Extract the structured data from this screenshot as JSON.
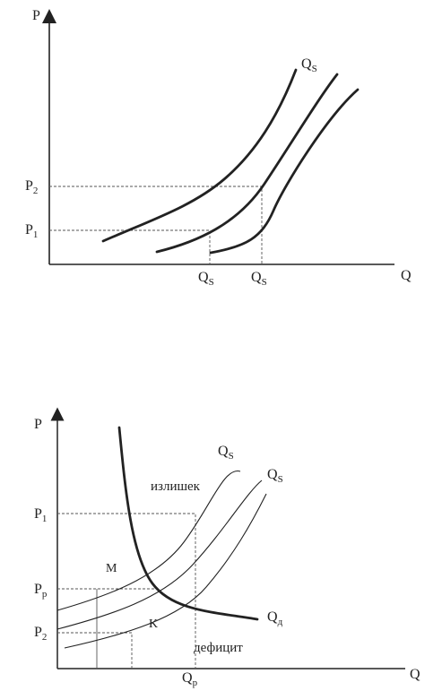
{
  "figure1": {
    "axis_y": "P",
    "axis_x": "Q",
    "p2": {
      "base": "P",
      "sub": "2"
    },
    "p1": {
      "base": "P",
      "sub": "1"
    },
    "qs_curve": {
      "base": "Q",
      "sub": "S"
    },
    "qs_tick1": {
      "base": "Q",
      "sub": "S"
    },
    "qs_tick2": {
      "base": "Q",
      "sub": "S"
    }
  },
  "figure2": {
    "axis_y": "P",
    "axis_x": "Q",
    "p1": {
      "base": "P",
      "sub": "1"
    },
    "pp": {
      "base": "P",
      "sub": "p"
    },
    "p2": {
      "base": "P",
      "sub": "2"
    },
    "qs1": {
      "base": "Q",
      "sub": "S"
    },
    "qs2": {
      "base": "Q",
      "sub": "S"
    },
    "qd": {
      "base": "Q",
      "sub": "д"
    },
    "qp": {
      "base": "Q",
      "sub": "р"
    },
    "surplus": "излишек",
    "deficit": "дефицит",
    "point_m": "M",
    "point_k": "K"
  },
  "colors": {
    "ink": "#222222",
    "guide": "#555555"
  }
}
